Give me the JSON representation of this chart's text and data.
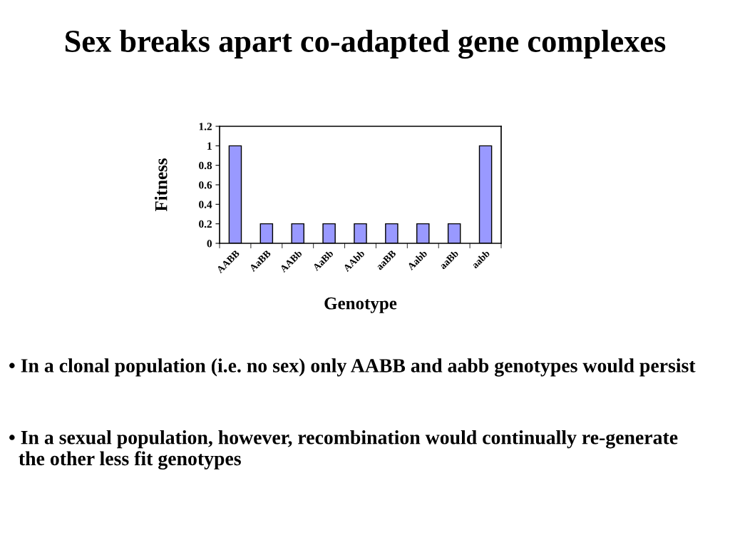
{
  "chart_data": {
    "type": "bar",
    "title": "Sex breaks apart co-adapted gene complexes",
    "xlabel": "Genotype",
    "ylabel": "Fitness",
    "categories": [
      "AABB",
      "AaBB",
      "AABb",
      "AaBb",
      "AAbb",
      "aaBB",
      "Aabb",
      "aaBb",
      "aabb"
    ],
    "values": [
      1,
      0.2,
      0.2,
      0.2,
      0.2,
      0.2,
      0.2,
      0.2,
      1
    ],
    "color": "#9999ff",
    "ylim": [
      0,
      1.2
    ],
    "yticks": [
      0,
      0.2,
      0.4,
      0.6,
      0.8,
      1,
      1.2
    ],
    "annotations": [
      "• In a clonal population (i.e. no sex) only AABB and aabb genotypes would persist",
      "• In a sexual population, however, recombination would continually re-generate\n  the other less fit genotypes"
    ]
  }
}
